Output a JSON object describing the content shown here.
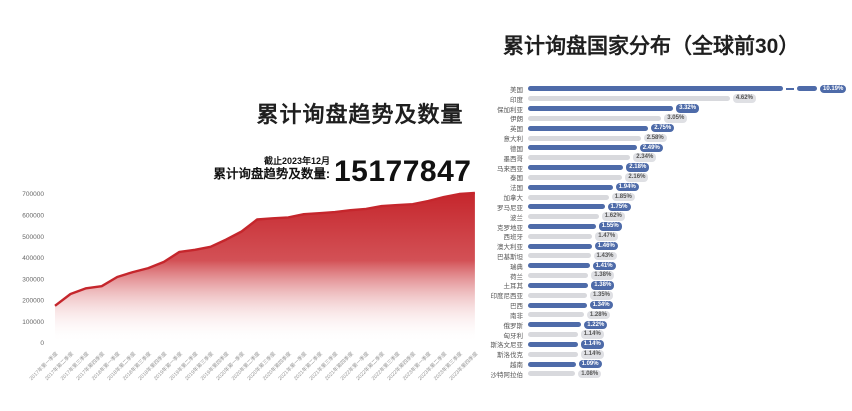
{
  "left_chart": {
    "title": "累计询盘趋势及数量",
    "as_of": "截止2023年12月",
    "stat_label": "累计询盘趋势及数量:",
    "stat_value": "15177847"
  },
  "right_chart": {
    "title": "累计询盘国家分布（全球前30）"
  },
  "chart_data": [
    {
      "type": "area",
      "title": "累计询盘趋势及数量",
      "xlabel": "",
      "ylabel": "",
      "ylim": [
        0,
        700000
      ],
      "yticks": [
        0,
        100000,
        200000,
        300000,
        400000,
        500000,
        600000,
        700000
      ],
      "grid": false,
      "line_color": "#c5262c",
      "fill_style": "red-to-white vertical gradient",
      "x": [
        "2017年第一季度",
        "2017年第二季度",
        "2017年第三季度",
        "2017年第四季度",
        "2018年第一季度",
        "2018年第二季度",
        "2018年第三季度",
        "2018年第四季度",
        "2019年第一季度",
        "2019年第二季度",
        "2019年第三季度",
        "2019年第四季度",
        "2020年第一季度",
        "2020年第二季度",
        "2020年第三季度",
        "2020年第四季度",
        "2021年第一季度",
        "2021年第二季度",
        "2021年第三季度",
        "2021年第四季度",
        "2022年第一季度",
        "2022年第二季度",
        "2022年第三季度",
        "2022年第四季度",
        "2023年第一季度",
        "2023年第二季度",
        "2023年第三季度",
        "2023年第四季度"
      ],
      "values": [
        175000,
        230000,
        257000,
        267000,
        310000,
        333000,
        352000,
        381000,
        428000,
        438000,
        452000,
        486000,
        524000,
        580000,
        586000,
        590000,
        605000,
        610000,
        615000,
        624000,
        630000,
        643000,
        648000,
        652000,
        667000,
        686000,
        700000,
        705000
      ]
    },
    {
      "type": "bar",
      "orientation": "horizontal",
      "title": "累计询盘国家分布（全球前30）",
      "legend": false,
      "bar_colors": {
        "blue": "#4e6ba9",
        "gray": "#d8d9dd"
      },
      "note": "top bar drawn with axis break",
      "rows": [
        {
          "country": "美国",
          "value": 10.19,
          "value_label": "10.19%",
          "color": "blue",
          "broken_bar": true
        },
        {
          "country": "印度",
          "value": 4.62,
          "value_label": "4.62%",
          "color": "gray",
          "broken_bar": false
        },
        {
          "country": "保加利亚",
          "value": 3.32,
          "value_label": "3.32%",
          "color": "blue",
          "broken_bar": false
        },
        {
          "country": "伊朗",
          "value": 3.05,
          "value_label": "3.05%",
          "color": "gray",
          "broken_bar": false
        },
        {
          "country": "英国",
          "value": 2.75,
          "value_label": "2.75%",
          "color": "blue",
          "broken_bar": false
        },
        {
          "country": "意大利",
          "value": 2.58,
          "value_label": "2.58%",
          "color": "gray",
          "broken_bar": false
        },
        {
          "country": "德国",
          "value": 2.49,
          "value_label": "2.49%",
          "color": "blue",
          "broken_bar": false
        },
        {
          "country": "墨西哥",
          "value": 2.34,
          "value_label": "2.34%",
          "color": "gray",
          "broken_bar": false
        },
        {
          "country": "马来西亚",
          "value": 2.18,
          "value_label": "2.18%",
          "color": "blue",
          "broken_bar": false
        },
        {
          "country": "泰国",
          "value": 2.16,
          "value_label": "2.16%",
          "color": "gray",
          "broken_bar": false
        },
        {
          "country": "法国",
          "value": 1.94,
          "value_label": "1.94%",
          "color": "blue",
          "broken_bar": false
        },
        {
          "country": "加拿大",
          "value": 1.85,
          "value_label": "1.85%",
          "color": "gray",
          "broken_bar": false
        },
        {
          "country": "罗马尼亚",
          "value": 1.75,
          "value_label": "1.75%",
          "color": "blue",
          "broken_bar": false
        },
        {
          "country": "波兰",
          "value": 1.62,
          "value_label": "1.62%",
          "color": "gray",
          "broken_bar": false
        },
        {
          "country": "克罗地亚",
          "value": 1.55,
          "value_label": "1.55%",
          "color": "blue",
          "broken_bar": false
        },
        {
          "country": "西班牙",
          "value": 1.47,
          "value_label": "1.47%",
          "color": "gray",
          "broken_bar": false
        },
        {
          "country": "澳大利亚",
          "value": 1.46,
          "value_label": "1.46%",
          "color": "blue",
          "broken_bar": false
        },
        {
          "country": "巴基斯坦",
          "value": 1.43,
          "value_label": "1.43%",
          "color": "gray",
          "broken_bar": false
        },
        {
          "country": "瑞典",
          "value": 1.41,
          "value_label": "1.41%",
          "color": "blue",
          "broken_bar": false
        },
        {
          "country": "荷兰",
          "value": 1.38,
          "value_label": "1.38%",
          "color": "gray",
          "broken_bar": false
        },
        {
          "country": "土耳其",
          "value": 1.38,
          "value_label": "1.38%",
          "color": "blue",
          "broken_bar": false
        },
        {
          "country": "印度尼西亚",
          "value": 1.35,
          "value_label": "1.35%",
          "color": "gray",
          "broken_bar": false
        },
        {
          "country": "巴西",
          "value": 1.34,
          "value_label": "1.34%",
          "color": "blue",
          "broken_bar": false
        },
        {
          "country": "南非",
          "value": 1.28,
          "value_label": "1.28%",
          "color": "gray",
          "broken_bar": false
        },
        {
          "country": "俄罗斯",
          "value": 1.22,
          "value_label": "1.22%",
          "color": "blue",
          "broken_bar": false
        },
        {
          "country": "匈牙利",
          "value": 1.14,
          "value_label": "1.14%",
          "color": "gray",
          "broken_bar": false
        },
        {
          "country": "斯洛文尼亚",
          "value": 1.14,
          "value_label": "1.14%",
          "color": "blue",
          "broken_bar": false
        },
        {
          "country": "斯洛伐克",
          "value": 1.14,
          "value_label": "1.14%",
          "color": "gray",
          "broken_bar": false
        },
        {
          "country": "越南",
          "value": 1.09,
          "value_label": "1.09%",
          "color": "blue",
          "broken_bar": false
        },
        {
          "country": "沙特阿拉伯",
          "value": 1.08,
          "value_label": "1.08%",
          "color": "gray",
          "broken_bar": false
        }
      ]
    }
  ]
}
